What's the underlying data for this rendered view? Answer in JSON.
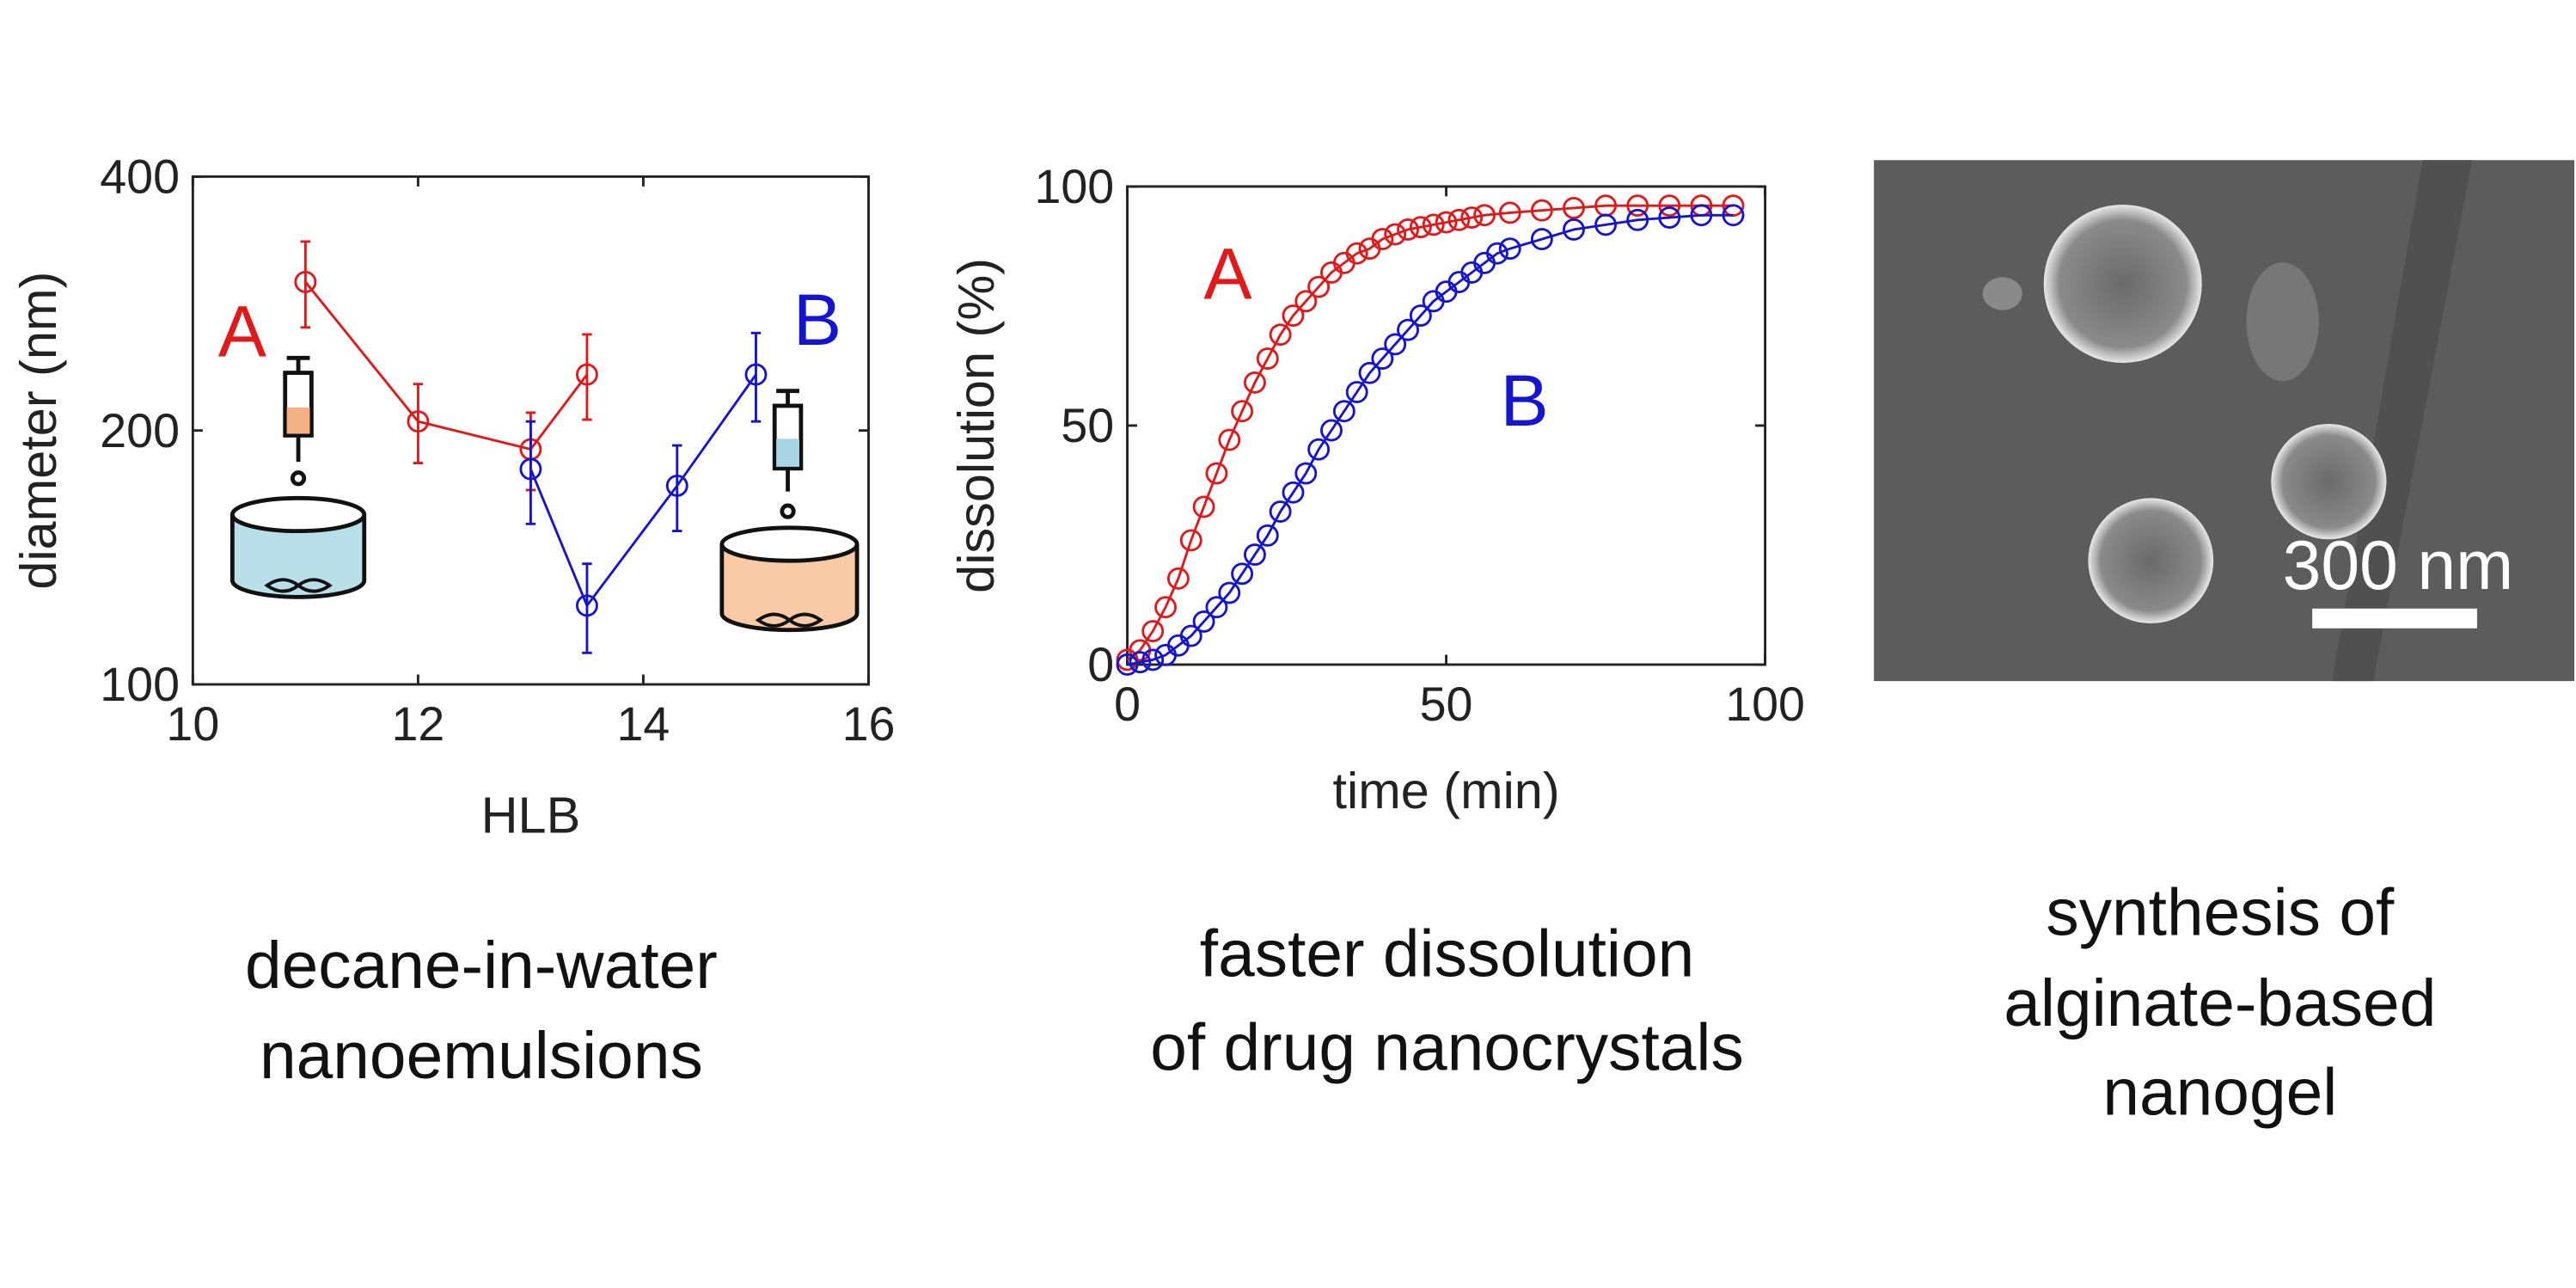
{
  "chart_data": [
    {
      "type": "line",
      "caption": [
        "decane-in-water",
        "nanoemulsions"
      ],
      "xlabel": "HLB",
      "ylabel": "diameter (nm)",
      "xlim": [
        10,
        16
      ],
      "xticks": [
        10,
        12,
        14,
        16
      ],
      "ylim": [
        100,
        400
      ],
      "yticks": [
        100,
        200,
        400
      ],
      "yscale": "log",
      "series": [
        {
          "name": "A",
          "color": "#e0191b",
          "x": [
            11,
            12,
            13,
            13.5
          ],
          "values": [
            300,
            205,
            190,
            233
          ],
          "errors": [
            35,
            22,
            20,
            27
          ]
        },
        {
          "name": "B",
          "color": "#1515d0",
          "x": [
            13,
            13.5,
            14.3,
            15
          ],
          "values": [
            180,
            124,
            172,
            233
          ],
          "errors": [
            25,
            15,
            20,
            28
          ]
        }
      ]
    },
    {
      "type": "line",
      "caption": [
        "faster dissolution",
        "of drug nanocrystals"
      ],
      "xlabel": "time (min)",
      "ylabel": "dissolution (%)",
      "xlim": [
        0,
        100
      ],
      "xticks": [
        0,
        50,
        100
      ],
      "ylim": [
        0,
        100
      ],
      "yticks": [
        0,
        50,
        100
      ],
      "series": [
        {
          "name": "A",
          "color": "#e0191b",
          "x": [
            0,
            2,
            4,
            6,
            8,
            10,
            12,
            14,
            16,
            18,
            20,
            22,
            24,
            26,
            28,
            30,
            32,
            34,
            36,
            38,
            40,
            42,
            44,
            46,
            48,
            50,
            52,
            54,
            56,
            60,
            65,
            70,
            75,
            80,
            85,
            90,
            95
          ],
          "values": [
            1,
            3,
            7,
            12,
            18,
            26,
            33,
            40,
            47,
            53,
            59,
            64,
            69,
            73,
            76,
            79,
            82,
            84,
            86,
            87,
            89,
            90,
            91,
            91.5,
            92,
            92.5,
            93,
            93.5,
            94,
            94.5,
            95,
            95.5,
            96,
            96,
            96,
            96,
            96
          ]
        },
        {
          "name": "B",
          "color": "#1515d0",
          "x": [
            0,
            2,
            4,
            6,
            8,
            10,
            12,
            14,
            16,
            18,
            20,
            22,
            24,
            26,
            28,
            30,
            32,
            34,
            36,
            38,
            40,
            42,
            44,
            46,
            48,
            50,
            52,
            54,
            56,
            58,
            60,
            65,
            70,
            75,
            80,
            85,
            90,
            95
          ],
          "values": [
            0,
            0.5,
            1,
            2,
            4,
            6,
            9,
            12,
            15,
            19,
            23,
            27,
            32,
            36,
            40,
            45,
            49,
            53,
            57,
            61,
            64,
            67,
            70,
            73,
            76,
            78,
            80,
            82,
            84,
            86,
            87,
            89,
            91,
            92,
            93,
            93.5,
            94,
            94
          ]
        }
      ]
    }
  ],
  "image": {
    "scale_label": "300 nm",
    "caption": [
      "synthesis of",
      "alginate-based",
      "nanogel"
    ]
  }
}
